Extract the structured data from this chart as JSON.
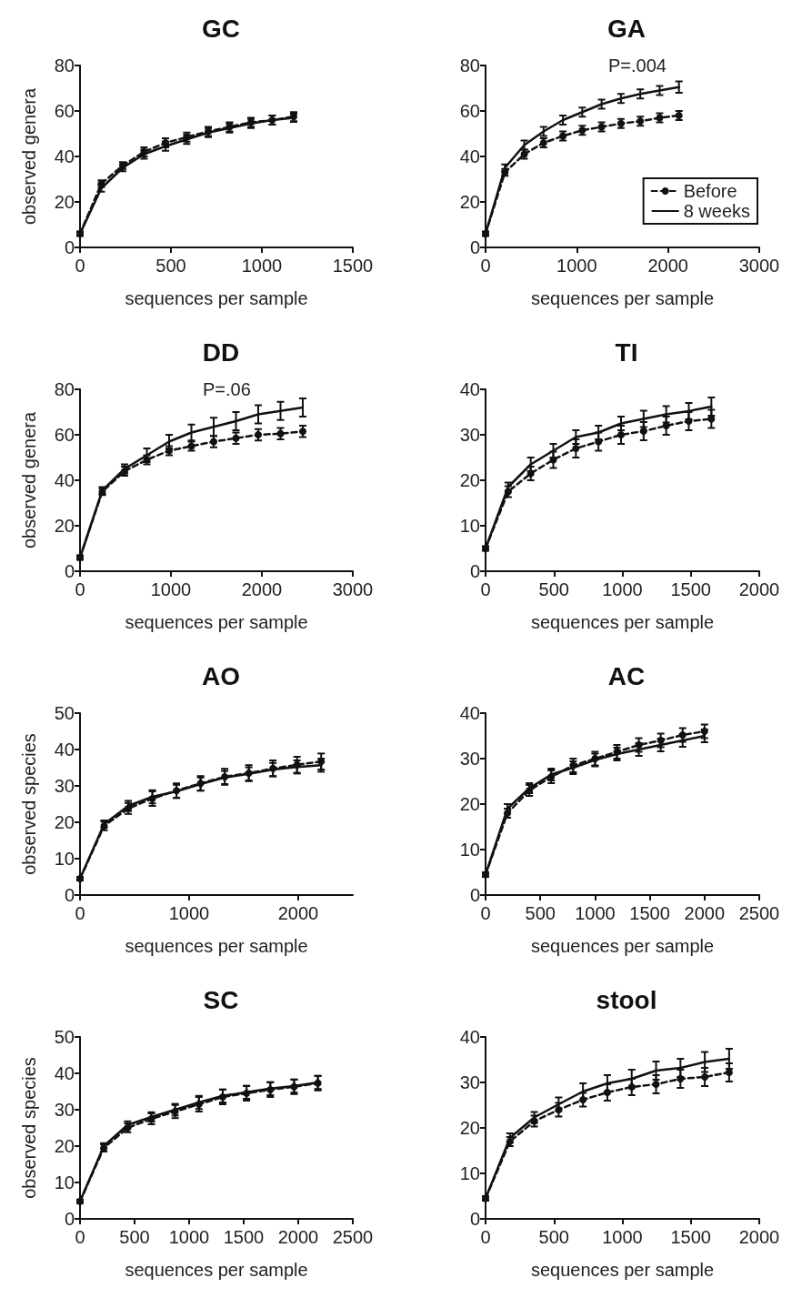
{
  "chart_data": [
    {
      "type": "line",
      "title": "GC",
      "xlabel": "sequences per sample",
      "ylabel": "observed genera",
      "xlim": [
        0,
        1500
      ],
      "xticks": [
        0,
        500,
        1000,
        1500
      ],
      "ylim": [
        0,
        80
      ],
      "yticks": [
        0,
        20,
        40,
        60,
        80
      ],
      "series": [
        {
          "color": "#111111",
          "marker": "circle",
          "line_style": "dashed",
          "x": [
            0,
            117,
            235,
            352,
            470,
            587,
            705,
            822,
            940,
            1057,
            1175
          ],
          "values": [
            6,
            28,
            36,
            42,
            46,
            48.5,
            51,
            53,
            55,
            56,
            57.5
          ],
          "errors": [
            1,
            1.5,
            1.5,
            2,
            2,
            2,
            2,
            2,
            2,
            2,
            2
          ]
        },
        {
          "color": "#111111",
          "marker": "none",
          "line_style": "solid",
          "x": [
            0,
            117,
            235,
            352,
            470,
            587,
            705,
            822,
            940,
            1057,
            1175
          ],
          "values": [
            6,
            26,
            35,
            41,
            44.5,
            47.5,
            50.5,
            52.5,
            54.5,
            56,
            57
          ],
          "errors": [
            0.8,
            1.5,
            1.5,
            2,
            2,
            2,
            2,
            2,
            2,
            2,
            1.8
          ]
        }
      ]
    },
    {
      "type": "line",
      "title": "GA",
      "xlabel": "sequences per sample",
      "xlim": [
        0,
        3000
      ],
      "xticks": [
        0,
        1000,
        2000,
        3000
      ],
      "ylim": [
        0,
        80
      ],
      "yticks": [
        0,
        20,
        40,
        60,
        80
      ],
      "legend": "bottom right",
      "annotations": [
        "P=.004"
      ],
      "series": [
        {
          "name": "Before",
          "color": "#111111",
          "marker": "circle",
          "line_style": "dashed",
          "x": [
            0,
            212,
            424,
            636,
            848,
            1060,
            1272,
            1484,
            1696,
            1908,
            2120
          ],
          "values": [
            6,
            33,
            41,
            46,
            49,
            51.5,
            53,
            54.5,
            55.5,
            57,
            58
          ],
          "errors": [
            1,
            1.5,
            2,
            2,
            2,
            2,
            2,
            2,
            2,
            2,
            2
          ]
        },
        {
          "name": "8 weeks",
          "color": "#111111",
          "marker": "none",
          "line_style": "solid",
          "x": [
            0,
            212,
            424,
            636,
            848,
            1060,
            1272,
            1484,
            1696,
            1908,
            2120
          ],
          "values": [
            6,
            35,
            45,
            51,
            56,
            59.5,
            63,
            65.5,
            67.5,
            69,
            70.5
          ],
          "errors": [
            0.8,
            1.5,
            2,
            2,
            2,
            2,
            2,
            2,
            2,
            2,
            2.5
          ]
        }
      ]
    },
    {
      "type": "line",
      "title": "DD",
      "xlabel": "sequences per sample",
      "ylabel": "observed genera",
      "xlim": [
        0,
        3000
      ],
      "xticks": [
        0,
        1000,
        2000,
        3000
      ],
      "ylim": [
        0,
        80
      ],
      "yticks": [
        0,
        20,
        40,
        60,
        80
      ],
      "annotations": [
        "P=.06"
      ],
      "series": [
        {
          "color": "#111111",
          "marker": "circle",
          "line_style": "dashed",
          "x": [
            0,
            245,
            490,
            735,
            980,
            1225,
            1470,
            1715,
            1960,
            2205,
            2450
          ],
          "values": [
            6,
            35,
            44,
            49,
            53,
            55,
            57,
            58.5,
            60,
            60.5,
            61.5
          ],
          "errors": [
            1,
            1.5,
            2,
            2,
            2,
            2,
            2.5,
            2.5,
            2.5,
            2.5,
            2.5
          ]
        },
        {
          "color": "#111111",
          "marker": "none",
          "line_style": "solid",
          "x": [
            0,
            245,
            490,
            735,
            980,
            1225,
            1470,
            1715,
            1960,
            2205,
            2450
          ],
          "values": [
            6,
            35.5,
            45,
            51,
            57,
            61,
            63.5,
            66,
            69,
            70.5,
            72
          ],
          "errors": [
            0.8,
            1.5,
            2,
            3,
            3,
            3.5,
            4,
            4,
            4,
            4,
            4
          ]
        }
      ]
    },
    {
      "type": "line",
      "title": "TI",
      "xlabel": "sequences per sample",
      "xlim": [
        0,
        2000
      ],
      "xticks": [
        0,
        500,
        1000,
        1500,
        2000
      ],
      "ylim": [
        0,
        40
      ],
      "yticks": [
        0,
        10,
        20,
        30,
        40
      ],
      "series": [
        {
          "color": "#111111",
          "marker": "circle",
          "line_style": "dashed",
          "x": [
            0,
            165,
            330,
            495,
            660,
            825,
            990,
            1155,
            1320,
            1485,
            1650
          ],
          "values": [
            5,
            17.5,
            21.5,
            24.5,
            27,
            28.5,
            30,
            30.8,
            32,
            33,
            33.5
          ],
          "errors": [
            0.5,
            1.2,
            1.5,
            1.8,
            2,
            2,
            2,
            2,
            2,
            2,
            2
          ]
        },
        {
          "color": "#111111",
          "marker": "none",
          "line_style": "solid",
          "x": [
            0,
            165,
            330,
            495,
            660,
            825,
            990,
            1155,
            1320,
            1485,
            1650
          ],
          "values": [
            5,
            18.5,
            23.5,
            26.5,
            29.5,
            30.5,
            32.5,
            33.5,
            34.5,
            35.2,
            36.2
          ],
          "errors": [
            0.4,
            1,
            1.5,
            1.5,
            1.5,
            1.5,
            1.5,
            1.8,
            1.8,
            1.8,
            2
          ]
        }
      ]
    },
    {
      "type": "line",
      "title": "AO",
      "xlabel": "sequences per sample",
      "ylabel": "observed species",
      "xlim": [
        0,
        2500
      ],
      "xticks": [
        0,
        1000,
        2000
      ],
      "ylim": [
        0,
        50
      ],
      "yticks": [
        0,
        10,
        20,
        30,
        40,
        50
      ],
      "series": [
        {
          "color": "#111111",
          "marker": "circle",
          "line_style": "dashed",
          "x": [
            0,
            221,
            442,
            663,
            884,
            1105,
            1326,
            1547,
            1768,
            1989,
            2210
          ],
          "values": [
            4.5,
            19,
            23.8,
            26.5,
            28.7,
            30.7,
            32.5,
            33.5,
            34.8,
            35.8,
            36.7
          ],
          "errors": [
            0.5,
            1.2,
            1.5,
            2,
            2,
            2,
            2.2,
            2.2,
            2.2,
            2.2,
            2.2
          ]
        },
        {
          "color": "#111111",
          "marker": "none",
          "line_style": "solid",
          "x": [
            0,
            221,
            442,
            663,
            884,
            1105,
            1326,
            1547,
            1768,
            1989,
            2210
          ],
          "values": [
            4.5,
            19.5,
            24.5,
            27,
            28.5,
            30.5,
            32.3,
            33.3,
            34.5,
            35.2,
            35.7
          ],
          "errors": [
            0.4,
            1,
            1.4,
            1.8,
            1.8,
            1.8,
            1.8,
            1.8,
            1.8,
            1.8,
            1.8
          ]
        }
      ]
    },
    {
      "type": "line",
      "title": "AC",
      "xlabel": "sequences per sample",
      "xlim": [
        0,
        2500
      ],
      "xticks": [
        0,
        500,
        1000,
        1500,
        2000,
        2500
      ],
      "ylim": [
        0,
        40
      ],
      "yticks": [
        0,
        10,
        20,
        30,
        40
      ],
      "series": [
        {
          "color": "#111111",
          "marker": "circle",
          "line_style": "dashed",
          "x": [
            0,
            200,
            400,
            600,
            800,
            1000,
            1200,
            1400,
            1600,
            1800,
            2000
          ],
          "values": [
            4.5,
            18,
            23,
            26,
            28.5,
            30,
            31.5,
            33,
            34,
            35.2,
            36
          ],
          "errors": [
            0.5,
            1,
            1.2,
            1.4,
            1.5,
            1.5,
            1.5,
            1.5,
            1.5,
            1.5,
            1.5
          ]
        },
        {
          "color": "#111111",
          "marker": "none",
          "line_style": "solid",
          "x": [
            0,
            200,
            400,
            600,
            800,
            1000,
            1200,
            1400,
            1600,
            1800,
            2000
          ],
          "values": [
            4.5,
            19,
            23.5,
            26.5,
            28,
            29.7,
            31,
            32,
            33,
            34,
            35
          ],
          "errors": [
            0.4,
            1,
            1.1,
            1.3,
            1.4,
            1.4,
            1.4,
            1.4,
            1.4,
            1.4,
            1.4
          ]
        }
      ]
    },
    {
      "type": "line",
      "title": "SC",
      "xlabel": "sequences per sample",
      "ylabel": "observed species",
      "xlim": [
        0,
        2500
      ],
      "xticks": [
        0,
        500,
        1000,
        1500,
        2000,
        2500
      ],
      "ylim": [
        0,
        50
      ],
      "yticks": [
        0,
        10,
        20,
        30,
        40,
        50
      ],
      "series": [
        {
          "color": "#111111",
          "marker": "circle",
          "line_style": "dashed",
          "x": [
            0,
            218,
            436,
            654,
            872,
            1090,
            1308,
            1526,
            1744,
            1962,
            2180
          ],
          "values": [
            4.8,
            19.5,
            25,
            27.5,
            29.5,
            31.5,
            33.5,
            34.5,
            35.5,
            36.3,
            37.3
          ],
          "errors": [
            0.5,
            1,
            1.2,
            1.5,
            1.8,
            2,
            2,
            2,
            2,
            2,
            2
          ]
        },
        {
          "color": "#111111",
          "marker": "none",
          "line_style": "solid",
          "x": [
            0,
            218,
            436,
            654,
            872,
            1090,
            1308,
            1526,
            1744,
            1962,
            2180
          ],
          "values": [
            4.8,
            20,
            25.8,
            28,
            30,
            32,
            33.8,
            34.8,
            35.8,
            36.5,
            37.5
          ],
          "errors": [
            0.4,
            0.8,
            1,
            1.3,
            1.6,
            1.8,
            1.8,
            1.8,
            1.8,
            1.8,
            1.8
          ]
        }
      ]
    },
    {
      "type": "line",
      "title": "stool",
      "xlabel": "sequences per sample",
      "xlim": [
        0,
        2000
      ],
      "xticks": [
        0,
        500,
        1000,
        1500,
        2000
      ],
      "ylim": [
        0,
        40
      ],
      "yticks": [
        0,
        10,
        20,
        30,
        40
      ],
      "series": [
        {
          "color": "#111111",
          "marker": "circle",
          "line_style": "dashed",
          "x": [
            0,
            178,
            356,
            534,
            712,
            890,
            1068,
            1246,
            1424,
            1602,
            1780
          ],
          "values": [
            4.5,
            17,
            21.5,
            24,
            26.2,
            27.8,
            29,
            29.6,
            30.8,
            31.2,
            32.2
          ],
          "errors": [
            0.5,
            1,
            1.2,
            1.5,
            1.5,
            1.8,
            1.8,
            2,
            2,
            2,
            2
          ]
        },
        {
          "color": "#111111",
          "marker": "none",
          "line_style": "solid",
          "x": [
            0,
            178,
            356,
            534,
            712,
            890,
            1068,
            1246,
            1424,
            1602,
            1780
          ],
          "values": [
            4.5,
            17.8,
            22.3,
            25.2,
            28,
            29.8,
            30.8,
            32.6,
            33.2,
            34.5,
            35.2
          ],
          "errors": [
            0.4,
            1,
            1.2,
            1.5,
            1.8,
            1.8,
            2,
            2,
            2,
            2.2,
            2.2
          ]
        }
      ]
    }
  ]
}
